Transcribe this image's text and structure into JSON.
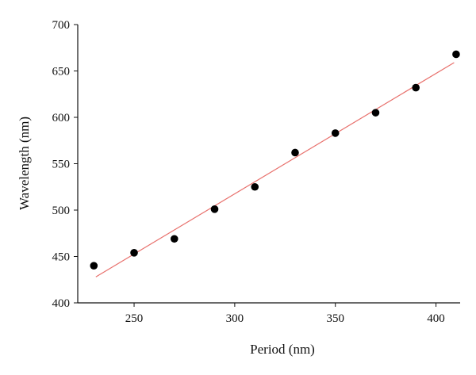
{
  "chart_data": {
    "type": "scatter",
    "xlabel": "Period (nm)",
    "ylabel": "Wavelength (nm)",
    "xlim": [
      222,
      412
    ],
    "ylim": [
      400,
      700
    ],
    "xticks": [
      250,
      300,
      350,
      400
    ],
    "yticks": [
      400,
      450,
      500,
      550,
      600,
      650,
      700
    ],
    "grid": false,
    "legend": "none",
    "series": [
      {
        "kind": "scatter",
        "color": "#000000",
        "x": [
          230,
          250,
          270,
          290,
          310,
          330,
          350,
          370,
          390,
          410
        ],
        "y": [
          440,
          454,
          469,
          501,
          525,
          562,
          583,
          605,
          632,
          668
        ]
      },
      {
        "kind": "line",
        "color": "#e8706c",
        "x": [
          231,
          409
        ],
        "y": [
          428,
          659
        ]
      }
    ]
  }
}
